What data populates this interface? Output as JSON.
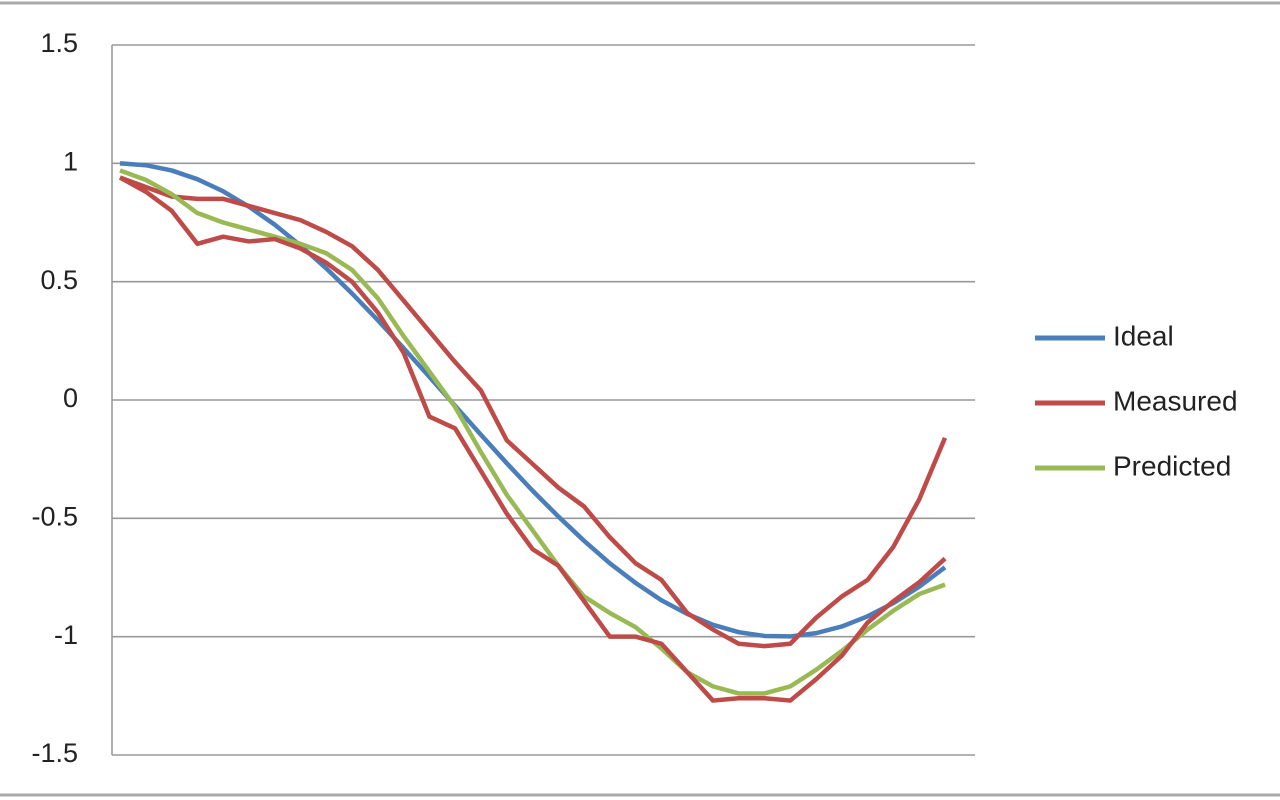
{
  "chart_data": {
    "type": "line",
    "categories": [
      null,
      null,
      null,
      null,
      null,
      null,
      null,
      null,
      null,
      null,
      null,
      null,
      null,
      null,
      null,
      null,
      null,
      null,
      null,
      null,
      null,
      null,
      null,
      null,
      null,
      null,
      null,
      null,
      null,
      null,
      null,
      null,
      null
    ],
    "series": [
      {
        "name": "Ideal",
        "color": "#4a7ebb",
        "values": [
          1,
          0.992,
          0.97,
          0.933,
          0.882,
          0.817,
          0.741,
          0.653,
          0.556,
          0.45,
          0.337,
          0.219,
          0.098,
          -0.025,
          -0.147,
          -0.267,
          -0.383,
          -0.492,
          -0.595,
          -0.69,
          -0.773,
          -0.846,
          -0.904,
          -0.95,
          -0.981,
          -0.997,
          -0.999,
          -0.985,
          -0.957,
          -0.914,
          -0.858,
          -0.789,
          -0.707
        ]
      },
      {
        "name": "Measured",
        "color": "#be4b48",
        "values": [
          0.94,
          0.9,
          0.86,
          0.85,
          0.85,
          0.82,
          0.79,
          0.76,
          0.71,
          0.65,
          0.55,
          0.42,
          0.29,
          0.16,
          0.04,
          -0.17,
          -0.27,
          -0.37,
          -0.45,
          -0.58,
          -0.69,
          -0.76,
          -0.9,
          -0.97,
          -1.03,
          -1.04,
          -1.03,
          -0.92,
          -0.83,
          -0.76,
          -0.62,
          -0.42,
          -0.16
        ]
      },
      {
        "name": "Predicted",
        "color": "#98b954",
        "values": [
          0.97,
          0.93,
          0.87,
          0.79,
          0.75,
          0.72,
          0.69,
          0.66,
          0.62,
          0.55,
          0.43,
          0.27,
          0.12,
          -0.03,
          -0.22,
          -0.4,
          -0.55,
          -0.7,
          -0.83,
          -0.9,
          -0.96,
          -1.05,
          -1.15,
          -1.21,
          -1.24,
          -1.24,
          -1.21,
          -1.14,
          -1.06,
          -0.97,
          -0.89,
          -0.82,
          -0.78
        ]
      },
      {
        "color": "#be4b48",
        "values": [
          0.94,
          0.88,
          0.8,
          0.66,
          0.69,
          0.67,
          0.68,
          0.64,
          0.58,
          0.5,
          0.37,
          0.2,
          -0.07,
          -0.12,
          -0.3,
          -0.48,
          -0.63,
          -0.7,
          -0.85,
          -1,
          -1,
          -1.03,
          -1.15,
          -1.27,
          -1.26,
          -1.26,
          -1.27,
          -1.18,
          -1.08,
          -0.94,
          -0.85,
          -0.77,
          -0.67
        ]
      }
    ],
    "ylim": [
      -1.5,
      1.5
    ],
    "yticks": [
      -1.5,
      -1,
      -0.5,
      0,
      0.5,
      1,
      1.5
    ],
    "grid": true,
    "legend": "right"
  }
}
